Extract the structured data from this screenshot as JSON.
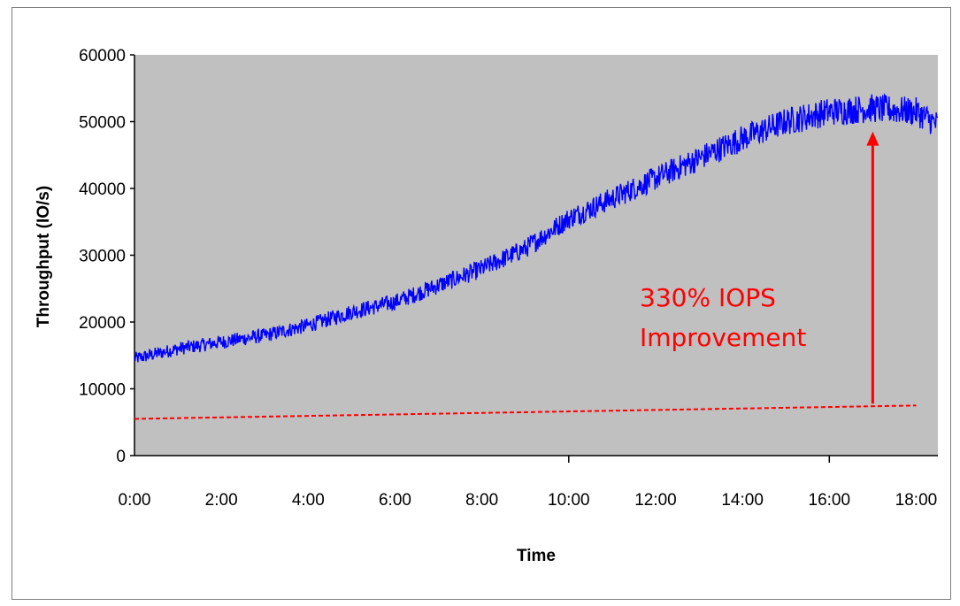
{
  "chart_data": {
    "type": "line",
    "xlabel": "Time",
    "ylabel": "Throughput (IO/s)",
    "xlim": [
      0,
      18.5
    ],
    "ylim": [
      0,
      60000
    ],
    "x_ticks": [
      "0:00",
      "2:00",
      "4:00",
      "6:00",
      "8:00",
      "10:00",
      "12:00",
      "14:00",
      "16:00",
      "18:00"
    ],
    "y_ticks": [
      0,
      10000,
      20000,
      30000,
      40000,
      50000,
      60000
    ],
    "grid": false,
    "legend": "none",
    "plot_background": "#c0c0c0",
    "series": [
      {
        "color": "#0000ff",
        "style": "solid",
        "x": [
          "0:00",
          "1:00",
          "2:00",
          "3:00",
          "4:00",
          "5:00",
          "6:00",
          "7:00",
          "8:00",
          "9:00",
          "10:00",
          "11:00",
          "12:00",
          "13:00",
          "14:00",
          "15:00",
          "16:00",
          "17:00",
          "18:00",
          "18:30"
        ],
        "values": [
          14500,
          16000,
          17000,
          18000,
          19500,
          21500,
          23000,
          25500,
          28000,
          31000,
          35500,
          38500,
          41500,
          44500,
          47500,
          50000,
          51500,
          52000,
          51500,
          49500
        ]
      },
      {
        "color": "#ff0000",
        "style": "dashed",
        "x": [
          "0:00",
          "18:00"
        ],
        "values": [
          5500,
          7500
        ]
      }
    ],
    "annotations": [
      {
        "text_lines": [
          "330%  IOPS",
          "Improvement"
        ],
        "color": "#ff0000"
      }
    ]
  }
}
